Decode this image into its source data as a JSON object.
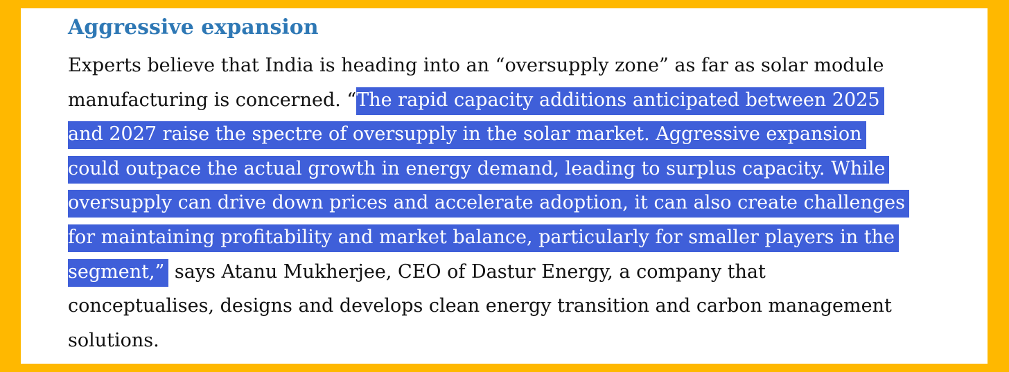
{
  "article": {
    "heading": "Aggressive expansion",
    "lines": [
      {
        "pre": "Experts believe that India is heading into an “oversupply zone” as far as solar module",
        "hl": "",
        "post": ""
      },
      {
        "pre": "manufacturing is concerned. “",
        "hl": "The rapid capacity additions anticipated between 2025",
        "post": ""
      },
      {
        "pre": "",
        "hl": "and 2027 raise the spectre of oversupply in the solar market. Aggressive expansion",
        "post": ""
      },
      {
        "pre": "",
        "hl": "could outpace the actual growth in energy demand, leading to surplus capacity. While",
        "post": ""
      },
      {
        "pre": "",
        "hl": "oversupply can drive down prices and accelerate adoption, it can also create challenges",
        "post": ""
      },
      {
        "pre": "",
        "hl": "for maintaining profitability and market balance, particularly for smaller players in the",
        "post": ""
      },
      {
        "pre": "",
        "hl": "segment,”",
        "post": " says Atanu Mukherjee, CEO of Dastur Energy, a company that"
      },
      {
        "pre": "conceptualises, designs and develops clean energy transition and carbon management",
        "hl": "",
        "post": ""
      },
      {
        "pre": "solutions.",
        "hl": "",
        "post": ""
      }
    ]
  },
  "colors": {
    "frame": "#FFB800",
    "heading": "#2E78B5",
    "highlight": "#3F5FD9"
  }
}
